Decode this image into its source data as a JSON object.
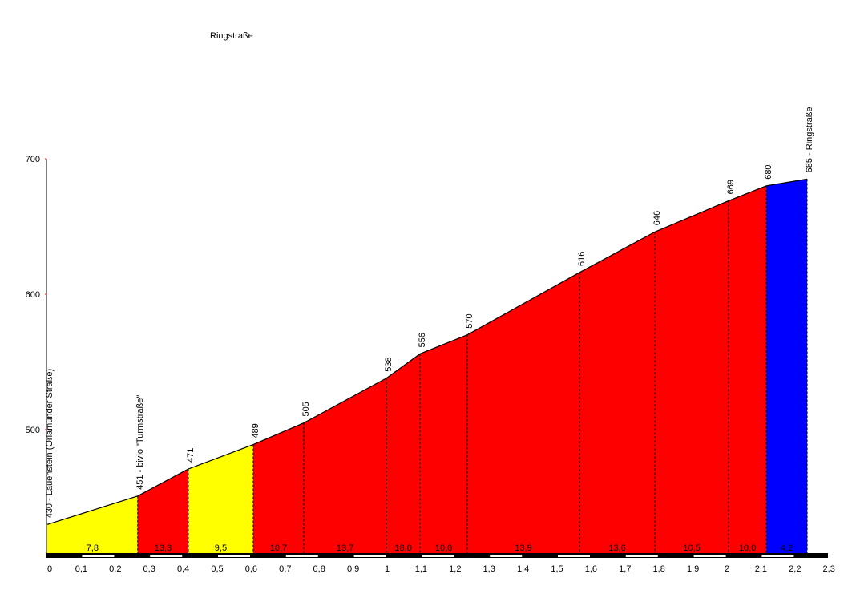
{
  "chart_data": {
    "type": "area",
    "title": "Ringstraße",
    "xlabel": "",
    "ylabel": "",
    "xlim": [
      0,
      2.3
    ],
    "ylim_visible": [
      700,
      600,
      500
    ],
    "x_ticks": [
      "0",
      "0,1",
      "0,2",
      "0,3",
      "0,4",
      "0,5",
      "0,6",
      "0,7",
      "0,8",
      "0,9",
      "1",
      "1,1",
      "1,2",
      "1,3",
      "1,4",
      "1,5",
      "1,6",
      "1,7",
      "1,8",
      "1,9",
      "2",
      "2,1",
      "2,2",
      "2,3"
    ],
    "y_ticks": [
      700,
      600,
      500
    ],
    "points": [
      {
        "km": 0.0,
        "elev": 430,
        "label": "430 - Lauenstein (Orlamünder Straße)"
      },
      {
        "km": 0.266,
        "elev": 451,
        "label": "451 - bivio \"Turmstraße\""
      },
      {
        "km": 0.415,
        "elev": 471,
        "label": "471"
      },
      {
        "km": 0.606,
        "elev": 489,
        "label": "489"
      },
      {
        "km": 0.755,
        "elev": 505,
        "label": "505"
      },
      {
        "km": 0.998,
        "elev": 538,
        "label": "538"
      },
      {
        "km": 1.097,
        "elev": 556,
        "label": "556"
      },
      {
        "km": 1.236,
        "elev": 570,
        "label": "570"
      },
      {
        "km": 1.566,
        "elev": 616,
        "label": "616"
      },
      {
        "km": 1.788,
        "elev": 646,
        "label": "646"
      },
      {
        "km": 2.005,
        "elev": 669,
        "label": "669"
      },
      {
        "km": 2.116,
        "elev": 680,
        "label": "680"
      },
      {
        "km": 2.236,
        "elev": 685,
        "label": "685 - Ringstraße"
      }
    ],
    "segment_gradients": [
      "7,8",
      "13,3",
      "9,5",
      "10,7",
      "13,7",
      "18,0",
      "10,0",
      "13,9",
      "13,6",
      "10,5",
      "10,0",
      "4,2"
    ],
    "segment_colors": [
      "#ffff00",
      "#ff0000",
      "#ffff00",
      "#ff0000",
      "#ff0000",
      "#ff0000",
      "#ff0000",
      "#ff0000",
      "#ff0000",
      "#ff0000",
      "#ff0000",
      "#0000ff"
    ]
  }
}
